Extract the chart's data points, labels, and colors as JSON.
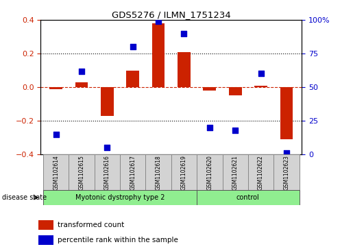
{
  "title": "GDS5276 / ILMN_1751234",
  "samples": [
    "GSM1102614",
    "GSM1102615",
    "GSM1102616",
    "GSM1102617",
    "GSM1102618",
    "GSM1102619",
    "GSM1102620",
    "GSM1102621",
    "GSM1102622",
    "GSM1102623"
  ],
  "transformed_count": [
    -0.01,
    0.03,
    -0.17,
    0.1,
    0.38,
    0.21,
    -0.02,
    -0.05,
    0.01,
    -0.31
  ],
  "percentile_rank": [
    15,
    62,
    5,
    80,
    99,
    90,
    20,
    18,
    60,
    1
  ],
  "ylim_left": [
    -0.4,
    0.4
  ],
  "ylim_right": [
    0,
    100
  ],
  "yticks_left": [
    -0.4,
    -0.2,
    0.0,
    0.2,
    0.4
  ],
  "yticks_right": [
    0,
    25,
    50,
    75,
    100
  ],
  "group1_label": "Myotonic dystrophy type 2",
  "group1_count": 6,
  "group2_label": "control",
  "group2_count": 4,
  "disease_state_label": "disease state",
  "legend_bar_label": "transformed count",
  "legend_dot_label": "percentile rank within the sample",
  "bar_color": "#CC2200",
  "dot_color": "#0000CC",
  "group_color": "#90EE90",
  "sample_box_color": "#D3D3D3",
  "bar_width": 0.5,
  "dotsize": 28,
  "hline0_color": "#CC2200",
  "hline_dotted_color": "black",
  "left_tick_color": "#CC2200",
  "right_tick_color": "#0000CC"
}
